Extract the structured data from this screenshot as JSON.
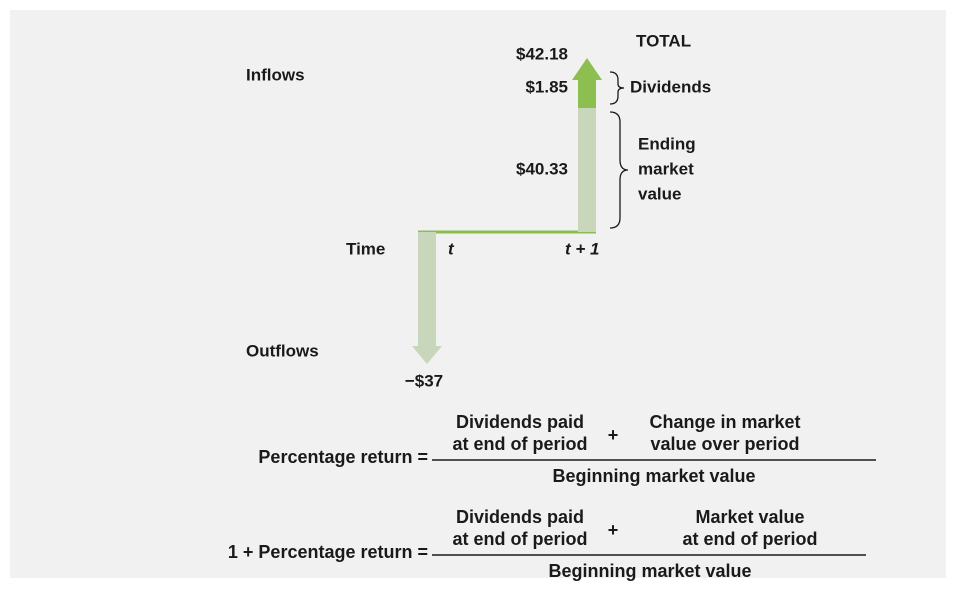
{
  "labels": {
    "inflows": "Inflows",
    "outflows": "Outflows",
    "time": "Time",
    "t": "t",
    "t_plus_1": "t + 1",
    "total": "TOTAL",
    "dividends": "Dividends",
    "ending_market_value": [
      "Ending",
      "market",
      "value"
    ]
  },
  "amounts": {
    "total": "$42.18",
    "dividends": "$1.85",
    "ending_market_value": "$40.33",
    "outflow": "−$37"
  },
  "formulas": [
    {
      "lhs": "Percentage return =",
      "term1": [
        "Dividends paid",
        "at end of period"
      ],
      "operator": "+",
      "term2": [
        "Change in market",
        "value over period"
      ],
      "denominator": "Beginning market value"
    },
    {
      "lhs": "1 + Percentage return =",
      "term1": [
        "Dividends paid",
        "at end of period"
      ],
      "operator": "+",
      "term2": [
        "Market value",
        "at end of period"
      ],
      "denominator": "Beginning market value"
    }
  ]
}
